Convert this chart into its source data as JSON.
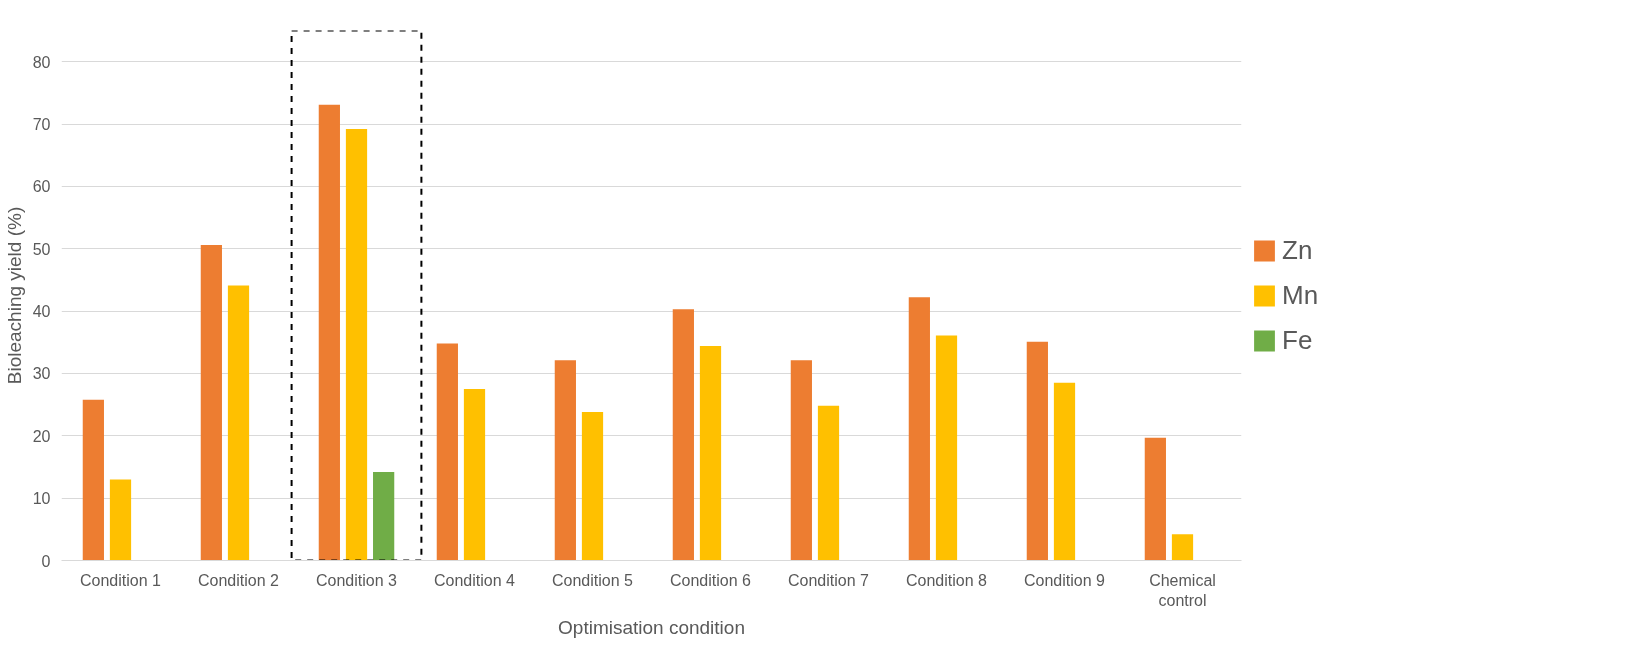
{
  "chart_data": {
    "type": "bar",
    "xlabel": "Optimisation condition",
    "ylabel": "Bioleaching yield (%)",
    "categories": [
      "Condition 1",
      "Condition 2",
      "Condition 3",
      "Condition 4",
      "Condition 5",
      "Condition 6",
      "Condition 7",
      "Condition 8",
      "Condition 9",
      "Chemical control"
    ],
    "series": [
      {
        "name": "Zn",
        "color": "#ed7d31",
        "values": [
          25.8,
          50.6,
          73.1,
          34.8,
          32.1,
          40.3,
          32.1,
          42.2,
          35.1,
          19.7
        ]
      },
      {
        "name": "Mn",
        "color": "#ffc000",
        "values": [
          13.0,
          44.1,
          69.2,
          27.5,
          23.8,
          34.4,
          24.8,
          36.1,
          28.5,
          4.2
        ]
      },
      {
        "name": "Fe",
        "color": "#70ad47",
        "values": [
          null,
          null,
          14.2,
          null,
          null,
          null,
          null,
          null,
          null,
          null
        ]
      }
    ],
    "ylim": [
      0,
      85
    ],
    "yticks": [
      0,
      10,
      20,
      30,
      40,
      50,
      60,
      70,
      80
    ],
    "grid": "y",
    "legend": "right"
  }
}
